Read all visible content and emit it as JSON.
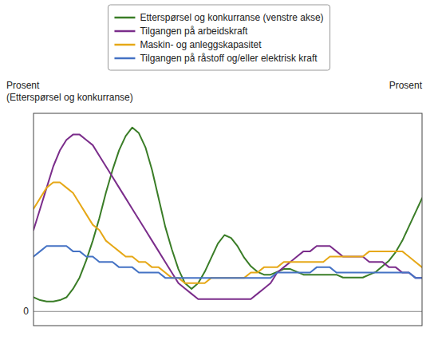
{
  "chart_data": {
    "type": "line",
    "ylabel": "Prosent\n(Etterspørsel og konkurranse)",
    "y2label": "Prosent",
    "categories": [
      null,
      null,
      null,
      null,
      null,
      null,
      null,
      null,
      null,
      null,
      null,
      null,
      null,
      null,
      null,
      null,
      null,
      null,
      null,
      null,
      null,
      null,
      null,
      null,
      null,
      null,
      null,
      null,
      null,
      null,
      null,
      null,
      null,
      null,
      null,
      null,
      null,
      null,
      null,
      null,
      null,
      null,
      null,
      null,
      null,
      null,
      null,
      null,
      null,
      null,
      null,
      null,
      null,
      null,
      null,
      null,
      null,
      null,
      null,
      null
    ],
    "series": [
      {
        "name": "Etterspørsel og konkurranse (venstre akse)",
        "color": "#3a7d27",
        "axis": "y",
        "values": [
          5,
          4,
          3.5,
          3.5,
          4,
          5,
          8,
          12,
          18,
          25,
          33,
          42,
          50,
          57,
          62,
          65,
          63,
          58,
          50,
          40,
          30,
          22,
          15,
          10,
          8,
          10,
          14,
          19,
          24,
          27,
          26,
          23,
          19,
          16,
          14,
          13,
          13,
          14,
          15,
          15,
          14,
          13,
          13,
          13,
          13,
          13,
          13,
          12,
          12,
          12,
          12,
          13,
          14,
          16,
          18,
          21,
          25,
          30,
          35,
          40
        ]
      },
      {
        "name": "Tilgangen på arbeidskraft",
        "color": "#7b2d8b",
        "axis": "y2",
        "values": [
          18,
          22,
          26,
          30,
          33,
          35,
          36,
          36,
          35,
          34,
          32,
          30,
          28,
          26,
          24,
          22,
          20,
          18,
          16,
          14,
          12,
          10,
          8,
          7,
          6,
          5,
          5,
          5,
          5,
          5,
          5,
          5,
          5,
          5,
          6,
          7,
          8,
          10,
          11,
          12,
          13,
          14,
          14,
          15,
          15,
          15,
          14,
          13,
          13,
          13,
          13,
          12,
          12,
          12,
          11,
          11,
          10,
          10,
          9,
          9
        ]
      },
      {
        "name": "Maskin- og anleggskapasitet",
        "color": "#e6a817",
        "axis": "y2",
        "values": [
          22,
          24,
          26,
          27,
          27,
          26,
          25,
          23,
          21,
          19,
          18,
          16,
          15,
          14,
          13,
          13,
          12,
          12,
          11,
          11,
          10,
          9,
          9,
          8,
          8,
          8,
          8,
          9,
          9,
          9,
          9,
          9,
          9,
          10,
          10,
          11,
          11,
          11,
          12,
          12,
          12,
          12,
          12,
          12,
          12,
          13,
          13,
          13,
          13,
          13,
          13,
          14,
          14,
          14,
          14,
          14,
          14,
          13,
          12,
          11
        ]
      },
      {
        "name": "Tilgangen på råstoff og/eller elektrisk kraft",
        "color": "#4472c4",
        "axis": "y2",
        "values": [
          13,
          14,
          15,
          15,
          15,
          15,
          14,
          14,
          13,
          13,
          12,
          12,
          12,
          11,
          11,
          11,
          10,
          10,
          10,
          10,
          9,
          9,
          9,
          9,
          9,
          9,
          9,
          9,
          9,
          9,
          9,
          9,
          9,
          9,
          9,
          9,
          9,
          10,
          10,
          10,
          10,
          10,
          10,
          11,
          11,
          11,
          10,
          10,
          10,
          10,
          10,
          10,
          10,
          10,
          10,
          10,
          10,
          10,
          9,
          9
        ]
      }
    ],
    "ylim": [
      -5,
      70
    ],
    "yticks": [
      0
    ],
    "y2lim": [
      0,
      40
    ],
    "y2ticks": [],
    "grid": true,
    "legend": "top",
    "tick_labels": "y"
  }
}
